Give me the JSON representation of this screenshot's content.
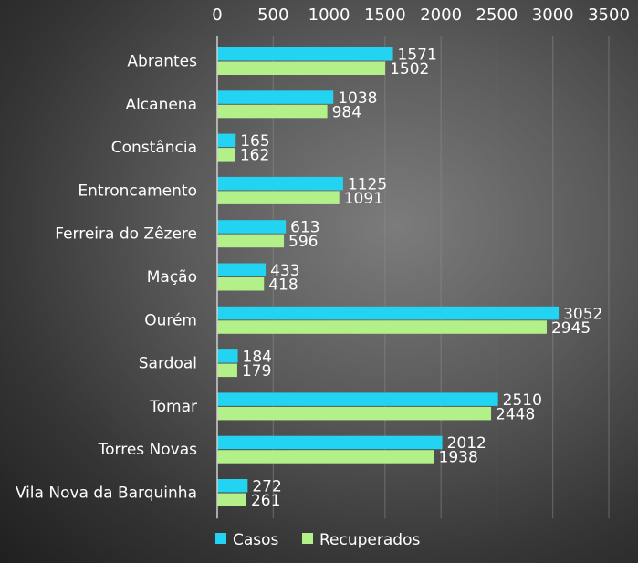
{
  "chart_data": {
    "type": "bar",
    "orientation": "horizontal",
    "categories": [
      "Abrantes",
      "Alcanena",
      "Constância",
      "Entroncamento",
      "Ferreira do Zêzere",
      "Mação",
      "Ourém",
      "Sardoal",
      "Tomar",
      "Torres Novas",
      "Vila Nova da Barquinha"
    ],
    "series": [
      {
        "name": "Casos",
        "color": "#22d3f2",
        "values": [
          1571,
          1038,
          165,
          1125,
          613,
          433,
          3052,
          184,
          2510,
          2012,
          272
        ]
      },
      {
        "name": "Recuperados",
        "color": "#b3f08a",
        "values": [
          1502,
          984,
          162,
          1091,
          596,
          418,
          2945,
          179,
          2448,
          1938,
          261
        ]
      }
    ],
    "xlim": [
      0,
      3500
    ],
    "xticks": [
      0,
      500,
      1000,
      1500,
      2000,
      2500,
      3000,
      3500
    ],
    "x_axis_position": "top",
    "grid": true,
    "legend_position": "bottom-left",
    "title": "",
    "xlabel": "",
    "ylabel": ""
  }
}
